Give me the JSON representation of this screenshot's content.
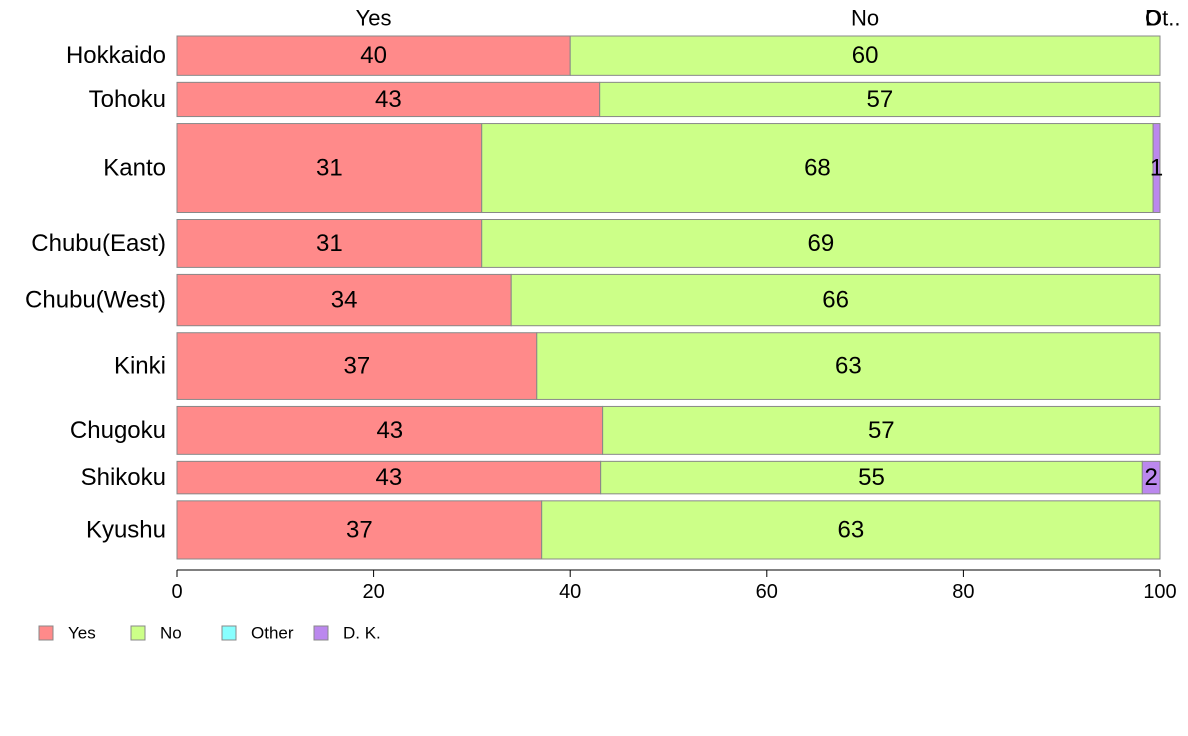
{
  "chart_data": {
    "type": "bar",
    "orientation": "horizontal",
    "stacked": true,
    "categories": [
      "Hokkaido",
      "Tohoku",
      "Kanto",
      "Chubu(East)",
      "Chubu(West)",
      "Kinki",
      "Chugoku",
      "Shikoku",
      "Kyushu"
    ],
    "category_weights": [
      0.23,
      0.2,
      0.52,
      0.28,
      0.3,
      0.39,
      0.28,
      0.19,
      0.34
    ],
    "series": [
      {
        "name": "Yes",
        "color": "#ff8a8a",
        "values": [
          40,
          43,
          31,
          31,
          34,
          36.6,
          43.3,
          43.1,
          37.1
        ],
        "labels": [
          "40",
          "43",
          "31",
          "31",
          "34",
          "37",
          "43",
          "43",
          "37"
        ]
      },
      {
        "name": "No",
        "color": "#ccff88",
        "values": [
          60,
          57,
          68.3,
          69,
          66,
          63.4,
          56.7,
          55.1,
          62.9
        ],
        "labels": [
          "60",
          "57",
          "68",
          "69",
          "66",
          "63",
          "57",
          "55",
          "63"
        ]
      },
      {
        "name": "Other",
        "color": "#88ffff",
        "values": [
          0,
          0,
          0,
          0,
          0,
          0,
          0,
          0,
          0
        ],
        "labels": [
          "",
          "",
          "",
          "",
          "",
          "",
          "",
          "",
          ""
        ]
      },
      {
        "name": "D. K.",
        "color": "#bb88ee",
        "values": [
          0,
          0,
          0.7,
          0,
          0,
          0,
          0,
          1.8,
          0
        ],
        "labels": [
          "",
          "",
          "1",
          "",
          "",
          "",
          "",
          "2",
          ""
        ]
      }
    ],
    "top_labels": [
      "Yes",
      "No",
      "D",
      "Ot.."
    ],
    "x_ticks": [
      "0",
      "20",
      "40",
      "60",
      "80",
      "100"
    ],
    "xlim": [
      0,
      100
    ],
    "legend": {
      "placement": "bottom-left",
      "items": [
        "Yes",
        "No",
        "Other",
        "D. K."
      ]
    },
    "grid": false
  }
}
